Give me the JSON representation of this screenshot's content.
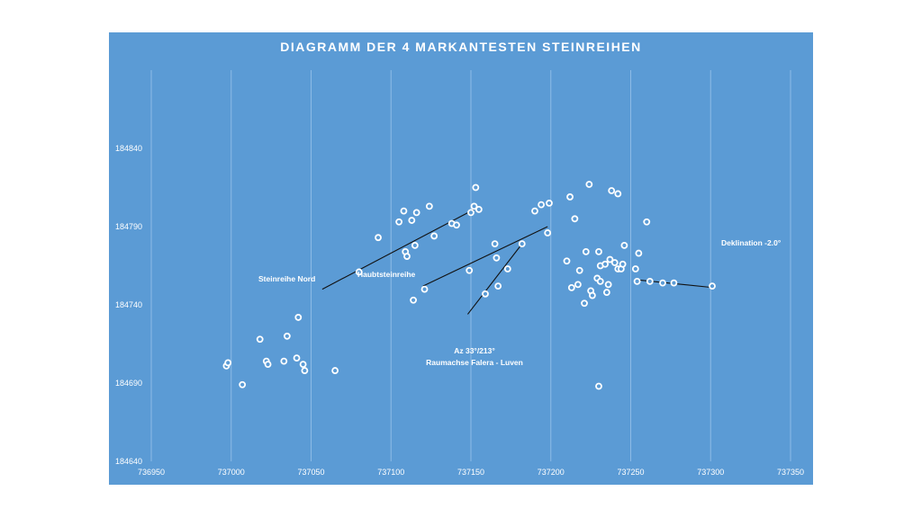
{
  "chart_data": {
    "type": "scatter",
    "title": "DIAGRAMM DER 4 MARKANTESTEN STEINREIHEN",
    "xlabel": "",
    "ylabel": "",
    "xlim": [
      736950,
      737350
    ],
    "ylim": [
      184640,
      184890
    ],
    "x_ticks": [
      736950,
      737000,
      737050,
      737100,
      737150,
      737200,
      737250,
      737300,
      737350
    ],
    "y_ticks": [
      184640,
      184690,
      184740,
      184790,
      184840
    ],
    "grid": "vertical",
    "colors": {
      "background": "#5b9bd5",
      "marker": "#ffffff",
      "grid": "#8dbbe6",
      "line": "#111111"
    },
    "points": [
      [
        736997,
        184701
      ],
      [
        736998,
        184703
      ],
      [
        737007,
        184689
      ],
      [
        737018,
        184718
      ],
      [
        737022,
        184704
      ],
      [
        737023,
        184702
      ],
      [
        737033,
        184704
      ],
      [
        737035,
        184720
      ],
      [
        737041,
        184706
      ],
      [
        737042,
        184732
      ],
      [
        737045,
        184702
      ],
      [
        737046,
        184698
      ],
      [
        737065,
        184698
      ],
      [
        737080,
        184761
      ],
      [
        737092,
        184783
      ],
      [
        737105,
        184793
      ],
      [
        737108,
        184800
      ],
      [
        737109,
        184774
      ],
      [
        737110,
        184771
      ],
      [
        737113,
        184794
      ],
      [
        737114,
        184743
      ],
      [
        737115,
        184778
      ],
      [
        737116,
        184799
      ],
      [
        737121,
        184750
      ],
      [
        737124,
        184803
      ],
      [
        737127,
        184784
      ],
      [
        737138,
        184792
      ],
      [
        737141,
        184791
      ],
      [
        737149,
        184762
      ],
      [
        737150,
        184799
      ],
      [
        737152,
        184803
      ],
      [
        737153,
        184815
      ],
      [
        737155,
        184801
      ],
      [
        737159,
        184747
      ],
      [
        737165,
        184779
      ],
      [
        737166,
        184770
      ],
      [
        737167,
        184752
      ],
      [
        737173,
        184763
      ],
      [
        737182,
        184779
      ],
      [
        737190,
        184800
      ],
      [
        737194,
        184804
      ],
      [
        737198,
        184786
      ],
      [
        737199,
        184805
      ],
      [
        737210,
        184768
      ],
      [
        737212,
        184809
      ],
      [
        737213,
        184751
      ],
      [
        737215,
        184795
      ],
      [
        737217,
        184753
      ],
      [
        737218,
        184762
      ],
      [
        737221,
        184741
      ],
      [
        737222,
        184774
      ],
      [
        737224,
        184817
      ],
      [
        737225,
        184749
      ],
      [
        737226,
        184746
      ],
      [
        737229,
        184757
      ],
      [
        737230,
        184688
      ],
      [
        737230,
        184774
      ],
      [
        737231,
        184755
      ],
      [
        737231,
        184765
      ],
      [
        737234,
        184766
      ],
      [
        737235,
        184748
      ],
      [
        737236,
        184753
      ],
      [
        737237,
        184769
      ],
      [
        737238,
        184813
      ],
      [
        737240,
        184767
      ],
      [
        737242,
        184763
      ],
      [
        737242,
        184811
      ],
      [
        737244,
        184763
      ],
      [
        737245,
        184766
      ],
      [
        737246,
        184778
      ],
      [
        737253,
        184763
      ],
      [
        737254,
        184755
      ],
      [
        737255,
        184773
      ],
      [
        737260,
        184793
      ],
      [
        737262,
        184755
      ],
      [
        737270,
        184754
      ],
      [
        737277,
        184754
      ],
      [
        737301,
        184752
      ]
    ],
    "trend_lines": [
      {
        "label": "Steinreihe Nord",
        "from": [
          737057,
          184750
        ],
        "to": [
          737152,
          184801
        ]
      },
      {
        "label": "Haubtsteinreihe",
        "from": [
          737120,
          184752
        ],
        "to": [
          737198,
          184790
        ]
      },
      {
        "label": "Az 33°/213°",
        "from": [
          737148,
          184734
        ],
        "to": [
          737182,
          184779
        ]
      },
      {
        "label": "Deklination -2.0°",
        "from": [
          737254,
          184756
        ],
        "to": [
          737302,
          184751
        ]
      }
    ],
    "annotations": {
      "nord": "Steinreihe Nord",
      "haupt": "Haubtsteinreihe",
      "az_line1": "Az 33°/213°",
      "az_line2": "Raumachse Falera - Luven",
      "dekl": "Deklination -2.0°"
    }
  }
}
